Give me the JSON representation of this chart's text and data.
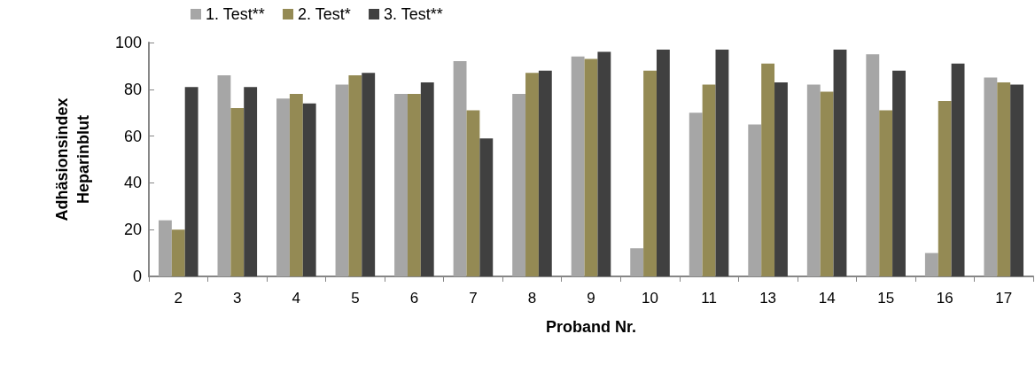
{
  "chart_data": {
    "type": "bar",
    "xlabel": "Proband Nr.",
    "ylabel": "Adhäsionsindex\nHeparinblut",
    "categories": [
      "2",
      "3",
      "4",
      "5",
      "6",
      "7",
      "8",
      "9",
      "10",
      "11",
      "13",
      "14",
      "15",
      "16",
      "17"
    ],
    "series": [
      {
        "name": "1. Test**",
        "color": "#a6a6a6",
        "values": [
          24,
          86,
          76,
          82,
          78,
          92,
          78,
          94,
          12,
          70,
          65,
          82,
          95,
          10,
          85
        ]
      },
      {
        "name": "2. Test*",
        "color": "#948a54",
        "values": [
          20,
          72,
          78,
          86,
          78,
          71,
          87,
          93,
          88,
          82,
          91,
          79,
          71,
          75,
          83
        ]
      },
      {
        "name": "3. Test**",
        "color": "#404040",
        "values": [
          81,
          81,
          74,
          87,
          83,
          59,
          88,
          96,
          97,
          97,
          83,
          97,
          88,
          91,
          82
        ]
      }
    ],
    "ylim": [
      0,
      100
    ],
    "yticks": [
      0,
      20,
      40,
      60,
      80,
      100
    ],
    "grid": false,
    "legend": "top"
  }
}
